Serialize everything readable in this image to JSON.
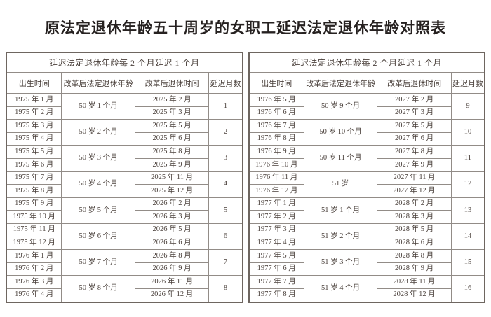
{
  "page": {
    "title": "原法定退休年龄五十周岁的女职工延迟法定退休年龄对照表"
  },
  "colors": {
    "background": "#ffffff",
    "title_text": "#262120",
    "table_text": "#4a403b",
    "border_outer": "#6e6660",
    "border_inner": "#928c87"
  },
  "tables": [
    {
      "banner": "延迟法定退休年龄每 2 个月延迟 1 个月",
      "columns": [
        "出生时间",
        "改革后法定退休年龄",
        "改革后退休时间",
        "延迟月数"
      ],
      "groups": [
        {
          "births": [
            "1975 年 1 月",
            "1975 年 2 月"
          ],
          "age": "50 岁 1 个月",
          "retires": [
            "2025 年 2 月",
            "2025 年 3 月"
          ],
          "delay": "1"
        },
        {
          "births": [
            "1975 年 3 月",
            "1975 年 4 月"
          ],
          "age": "50 岁 2 个月",
          "retires": [
            "2025 年 5 月",
            "2025 年 6 月"
          ],
          "delay": "2"
        },
        {
          "births": [
            "1975 年 5 月",
            "1975 年 6 月"
          ],
          "age": "50 岁 3 个月",
          "retires": [
            "2025 年 8 月",
            "2025 年 9 月"
          ],
          "delay": "3"
        },
        {
          "births": [
            "1975 年 7 月",
            "1975 年 8 月"
          ],
          "age": "50 岁 4 个月",
          "retires": [
            "2025 年 11 月",
            "2025 年 12 月"
          ],
          "delay": "4"
        },
        {
          "births": [
            "1975 年 9 月",
            "1975 年 10 月"
          ],
          "age": "50 岁 5 个月",
          "retires": [
            "2026 年 2 月",
            "2026 年 3 月"
          ],
          "delay": "5"
        },
        {
          "births": [
            "1975 年 11 月",
            "1975 年 12 月"
          ],
          "age": "50 岁 6 个月",
          "retires": [
            "2026 年 5 月",
            "2026 年 6 月"
          ],
          "delay": "6"
        },
        {
          "births": [
            "1976 年 1 月",
            "1976 年 2 月"
          ],
          "age": "50 岁 7 个月",
          "retires": [
            "2026 年 8 月",
            "2026 年 9 月"
          ],
          "delay": "7"
        },
        {
          "births": [
            "1976 年 3 月",
            "1976 年 4 月"
          ],
          "age": "50 岁 8 个月",
          "retires": [
            "2026 年 11 月",
            "2026 年 12 月"
          ],
          "delay": "8"
        }
      ]
    },
    {
      "banner": "延迟法定退休年龄每 2 个月延迟 1 个月",
      "columns": [
        "出生时间",
        "改革后法定退休年龄",
        "改革后退休时间",
        "延迟月数"
      ],
      "groups": [
        {
          "births": [
            "1976 年 5 月",
            "1976 年 6 月"
          ],
          "age": "50 岁 9 个月",
          "retires": [
            "2027 年 2 月",
            "2027 年 3 月"
          ],
          "delay": "9"
        },
        {
          "births": [
            "1976 年 7 月",
            "1976 年 8 月"
          ],
          "age": "50 岁 10 个月",
          "retires": [
            "2027 年 5 月",
            "2027 年 6 月"
          ],
          "delay": "10"
        },
        {
          "births": [
            "1976 年 9 月",
            "1976 年 10 月"
          ],
          "age": "50 岁 11 个月",
          "retires": [
            "2027 年 8 月",
            "2027 年 9 月"
          ],
          "delay": "11"
        },
        {
          "births": [
            "1976 年 11 月",
            "1976 年 12 月"
          ],
          "age": "51 岁",
          "retires": [
            "2027 年 11 月",
            "2027 年 12 月"
          ],
          "delay": "12"
        },
        {
          "births": [
            "1977 年 1 月",
            "1977 年 2 月"
          ],
          "age": "51 岁 1 个月",
          "retires": [
            "2028 年 2 月",
            "2028 年 3 月"
          ],
          "delay": "13"
        },
        {
          "births": [
            "1977 年 3 月",
            "1977 年 4 月"
          ],
          "age": "51 岁 2 个月",
          "retires": [
            "2028 年 5 月",
            "2028 年 6 月"
          ],
          "delay": "14"
        },
        {
          "births": [
            "1977 年 5 月",
            "1977 年 6 月"
          ],
          "age": "51 岁 3 个月",
          "retires": [
            "2028 年 8 月",
            "2028 年 9 月"
          ],
          "delay": "15"
        },
        {
          "births": [
            "1977 年 7 月",
            "1977 年 8 月"
          ],
          "age": "51 岁 4 个月",
          "retires": [
            "2028 年 11 月",
            "2028 年 12 月"
          ],
          "delay": "16"
        }
      ]
    }
  ]
}
